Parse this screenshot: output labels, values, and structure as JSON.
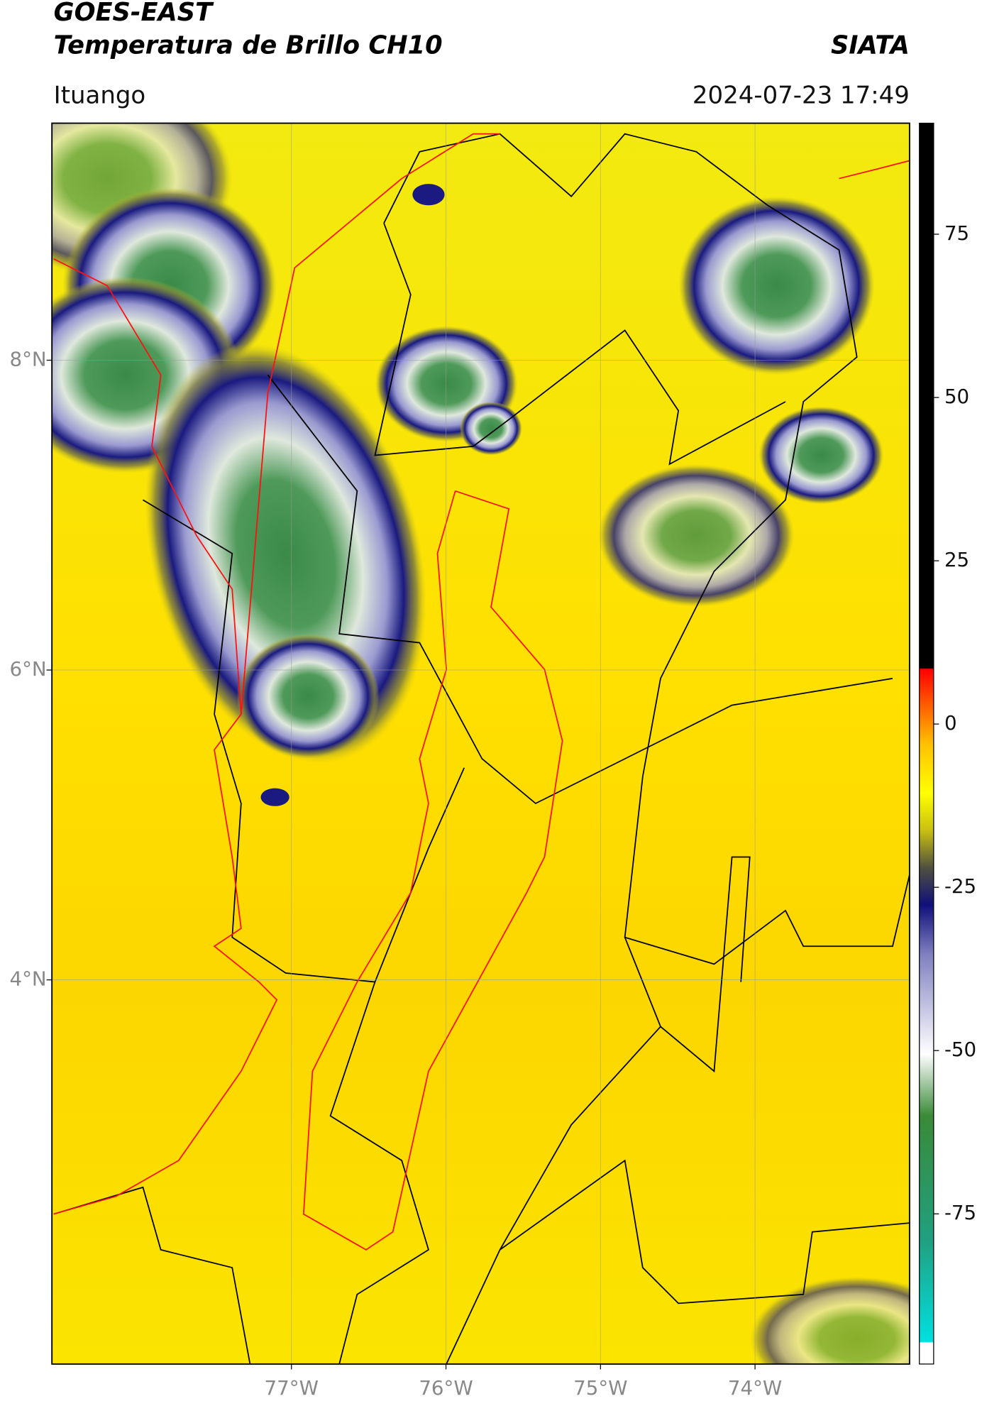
{
  "header": {
    "title": "GOES-EAST",
    "subtitle": "Temperatura de Brillo CH10",
    "source": "SIATA",
    "location": "Ituango",
    "timestamp": "2024-07-23 17:49"
  },
  "map": {
    "xlim": [
      -78.55,
      -73.0
    ],
    "ylim": [
      1.52,
      9.53
    ],
    "xticks": [
      {
        "value": -77,
        "label": "77°W"
      },
      {
        "value": -76,
        "label": "76°W"
      },
      {
        "value": -75,
        "label": "75°W"
      },
      {
        "value": -74,
        "label": "74°W"
      }
    ],
    "yticks": [
      {
        "value": 8,
        "label": "8°N"
      },
      {
        "value": 6,
        "label": "6°N"
      },
      {
        "value": 4,
        "label": "4°N"
      }
    ]
  },
  "colorbar": {
    "clim": [
      -98,
      92
    ],
    "ticks": [
      75,
      50,
      25,
      0,
      -25,
      -50,
      -75
    ]
  }
}
